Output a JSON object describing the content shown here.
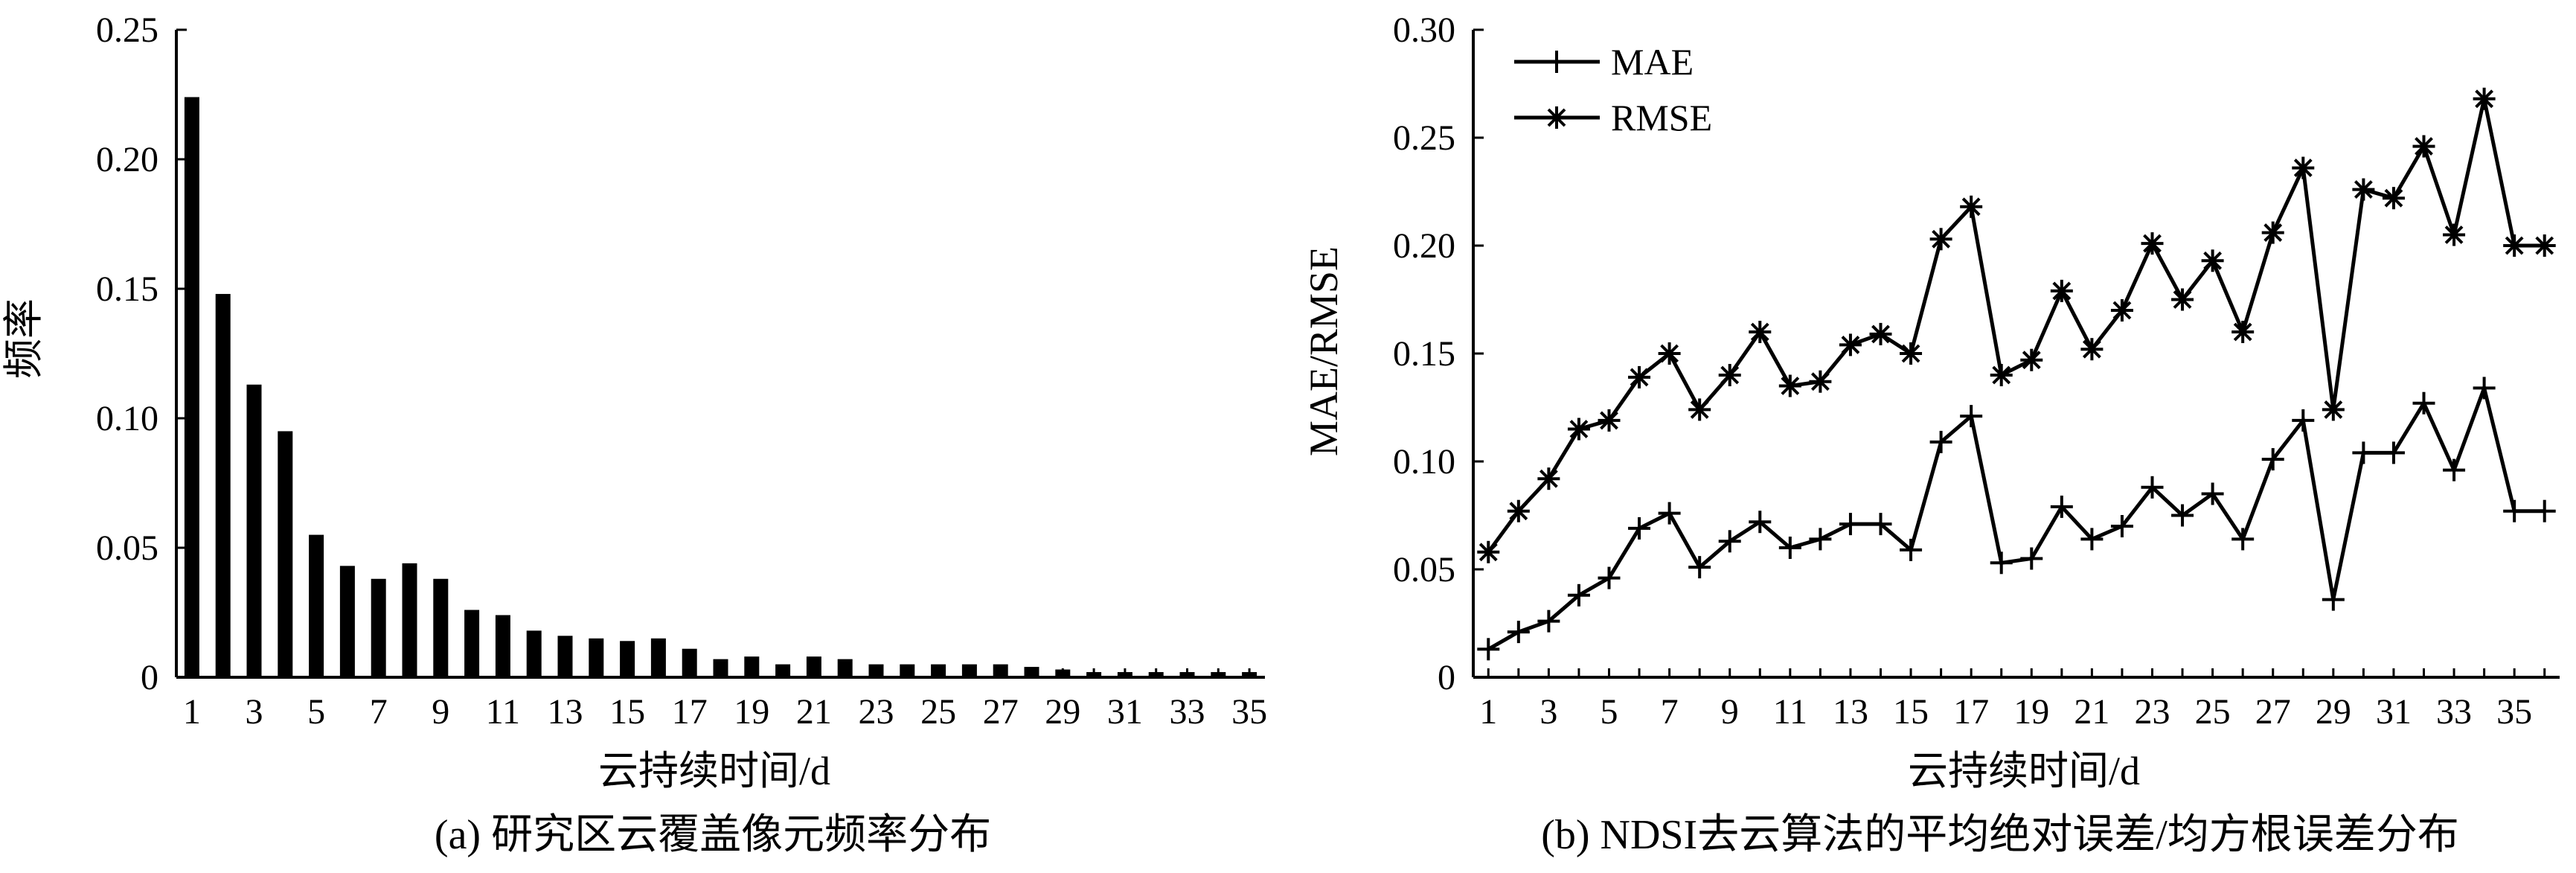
{
  "charts": [
    {
      "caption": "(a) 研究区云覆盖像元频率分布",
      "chart_data": {
        "type": "bar",
        "xlabel": "云持续时间/d",
        "ylabel": "频率",
        "ylim": [
          0,
          0.25
        ],
        "yticks": [
          "0",
          "0.05",
          "0.10",
          "0.15",
          "0.20",
          "0.25"
        ],
        "xticks": [
          "1",
          "3",
          "5",
          "7",
          "9",
          "11",
          "13",
          "15",
          "17",
          "19",
          "21",
          "23",
          "25",
          "27",
          "29",
          "31",
          "33",
          "35"
        ],
        "categories": [
          1,
          2,
          3,
          4,
          5,
          6,
          7,
          8,
          9,
          10,
          11,
          12,
          13,
          14,
          15,
          16,
          17,
          18,
          19,
          20,
          21,
          22,
          23,
          24,
          25,
          26,
          27,
          28,
          29,
          30,
          31,
          32,
          33,
          34,
          35
        ],
        "values": [
          0.224,
          0.148,
          0.113,
          0.095,
          0.055,
          0.043,
          0.038,
          0.044,
          0.038,
          0.026,
          0.024,
          0.018,
          0.016,
          0.015,
          0.014,
          0.015,
          0.011,
          0.007,
          0.008,
          0.005,
          0.008,
          0.007,
          0.005,
          0.005,
          0.005,
          0.005,
          0.005,
          0.004,
          0.003,
          0.002,
          0.002,
          0.002,
          0.002,
          0.002,
          0.002
        ]
      }
    },
    {
      "caption": "(b) NDSI去云算法的平均绝对误差/均方根误差分布",
      "chart_data": {
        "type": "line",
        "xlabel": "云持续时间/d",
        "ylabel": "MAE/RMSE",
        "ylim": [
          0,
          0.3
        ],
        "yticks": [
          "0",
          "0.05",
          "0.10",
          "0.15",
          "0.20",
          "0.25",
          "0.30"
        ],
        "xticks": [
          "1",
          "3",
          "5",
          "7",
          "9",
          "11",
          "13",
          "15",
          "17",
          "19",
          "21",
          "23",
          "25",
          "27",
          "29",
          "31",
          "33",
          "35"
        ],
        "legend_position": "top-left",
        "x": [
          1,
          2,
          3,
          4,
          5,
          6,
          7,
          8,
          9,
          10,
          11,
          12,
          13,
          14,
          15,
          16,
          17,
          18,
          19,
          20,
          21,
          22,
          23,
          24,
          25,
          26,
          27,
          28,
          29,
          30,
          31,
          32,
          33,
          34,
          35,
          36
        ],
        "series": [
          {
            "name": "MAE",
            "marker": "plus",
            "values": [
              0.013,
              0.021,
              0.026,
              0.038,
              0.046,
              0.069,
              0.076,
              0.051,
              0.063,
              0.072,
              0.06,
              0.064,
              0.071,
              0.071,
              0.059,
              0.109,
              0.121,
              0.053,
              0.055,
              0.079,
              0.064,
              0.07,
              0.088,
              0.075,
              0.085,
              0.064,
              0.101,
              0.119,
              0.036,
              0.104,
              0.104,
              0.127,
              0.096,
              0.134,
              0.077,
              0.077
            ]
          },
          {
            "name": "RMSE",
            "marker": "star",
            "values": [
              0.058,
              0.077,
              0.092,
              0.115,
              0.119,
              0.139,
              0.15,
              0.124,
              0.14,
              0.16,
              0.135,
              0.137,
              0.154,
              0.159,
              0.15,
              0.203,
              0.218,
              0.14,
              0.147,
              0.179,
              0.152,
              0.17,
              0.201,
              0.175,
              0.193,
              0.16,
              0.206,
              0.236,
              0.124,
              0.226,
              0.222,
              0.246,
              0.205,
              0.268,
              0.2,
              0.2
            ]
          }
        ]
      }
    }
  ]
}
